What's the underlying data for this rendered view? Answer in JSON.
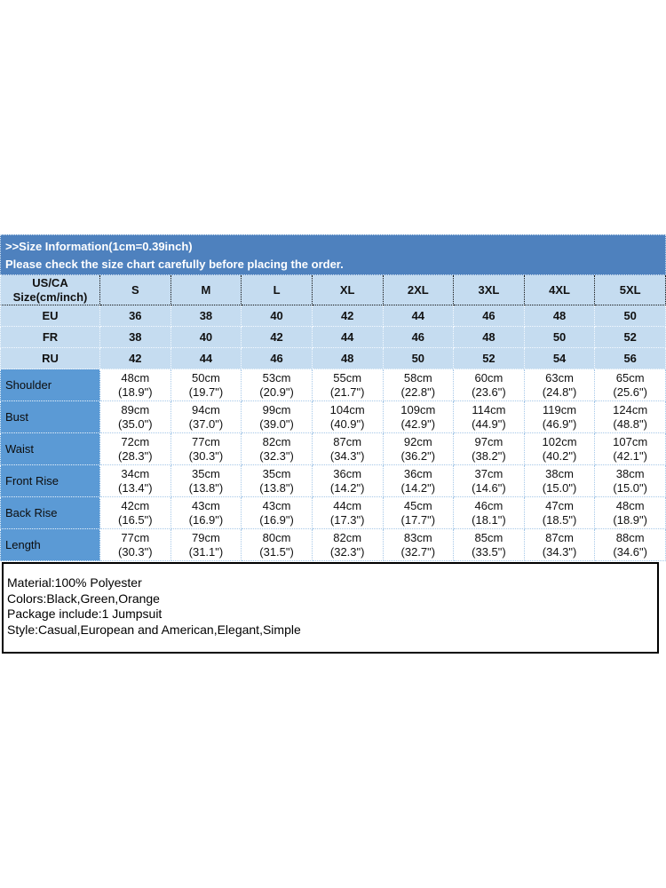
{
  "banner": {
    "title": ">>Size Information(1cm=0.39inch)",
    "subtitle": "Please check the size chart carefully before placing the order."
  },
  "size_table": {
    "corner_header_line1": "US/CA",
    "corner_header_line2": "Size(cm/inch)",
    "size_columns": [
      "S",
      "M",
      "L",
      "XL",
      "2XL",
      "3XL",
      "4XL",
      "5XL"
    ],
    "conversion_rows": [
      {
        "label": "EU",
        "values": [
          "36",
          "38",
          "40",
          "42",
          "44",
          "46",
          "48",
          "50"
        ]
      },
      {
        "label": "FR",
        "values": [
          "38",
          "40",
          "42",
          "44",
          "46",
          "48",
          "50",
          "52"
        ]
      },
      {
        "label": "RU",
        "values": [
          "42",
          "44",
          "46",
          "48",
          "50",
          "52",
          "54",
          "56"
        ]
      }
    ],
    "measurement_rows": [
      {
        "label": "Shoulder",
        "values_cm": [
          "48cm",
          "50cm",
          "53cm",
          "55cm",
          "58cm",
          "60cm",
          "63cm",
          "65cm"
        ],
        "values_inch": [
          "(18.9\")",
          "(19.7\")",
          "(20.9\")",
          "(21.7\")",
          "(22.8\")",
          "(23.6\")",
          "(24.8\")",
          "(25.6\")"
        ]
      },
      {
        "label": "Bust",
        "values_cm": [
          "89cm",
          "94cm",
          "99cm",
          "104cm",
          "109cm",
          "114cm",
          "119cm",
          "124cm"
        ],
        "values_inch": [
          "(35.0\")",
          "(37.0\")",
          "(39.0\")",
          "(40.9\")",
          "(42.9\")",
          "(44.9\")",
          "(46.9\")",
          "(48.8\")"
        ]
      },
      {
        "label": "Waist",
        "values_cm": [
          "72cm",
          "77cm",
          "82cm",
          "87cm",
          "92cm",
          "97cm",
          "102cm",
          "107cm"
        ],
        "values_inch": [
          "(28.3\")",
          "(30.3\")",
          "(32.3\")",
          "(34.3\")",
          "(36.2\")",
          "(38.2\")",
          "(40.2\")",
          "(42.1\")"
        ]
      },
      {
        "label": "Front Rise",
        "values_cm": [
          "34cm",
          "35cm",
          "35cm",
          "36cm",
          "36cm",
          "37cm",
          "38cm",
          "38cm"
        ],
        "values_inch": [
          "(13.4\")",
          "(13.8\")",
          "(13.8\")",
          "(14.2\")",
          "(14.2\")",
          "(14.6\")",
          "(15.0\")",
          "(15.0\")"
        ]
      },
      {
        "label": "Back Rise",
        "values_cm": [
          "42cm",
          "43cm",
          "43cm",
          "44cm",
          "45cm",
          "46cm",
          "47cm",
          "48cm"
        ],
        "values_inch": [
          "(16.5\")",
          "(16.9\")",
          "(16.9\")",
          "(17.3\")",
          "(17.7\")",
          "(18.1\")",
          "(18.5\")",
          "(18.9\")"
        ]
      },
      {
        "label": "Length",
        "values_cm": [
          "77cm",
          "79cm",
          "80cm",
          "82cm",
          "83cm",
          "85cm",
          "87cm",
          "88cm"
        ],
        "values_inch": [
          "(30.3\")",
          "(31.1\")",
          "(31.5\")",
          "(32.3\")",
          "(32.7\")",
          "(33.5\")",
          "(34.3\")",
          "(34.6\")"
        ]
      }
    ]
  },
  "product_info": {
    "lines": [
      "Material:100% Polyester",
      "Colors:Black,Green,Orange",
      "Package include:1 Jumpsuit",
      "Style:Casual,European and American,Elegant,Simple"
    ]
  },
  "colors": {
    "banner_bg": "#4e81be",
    "banner_text": "#ffffff",
    "light_row_bg": "#c5dcf0",
    "label_column_bg": "#5b9ad5",
    "data_cell_bg": "#ffffff",
    "grid_dotted_on_white": "#a6c8e8",
    "grid_dotted_on_blue": "#f5faff",
    "info_box_border": "#000000",
    "text": "#111111"
  }
}
